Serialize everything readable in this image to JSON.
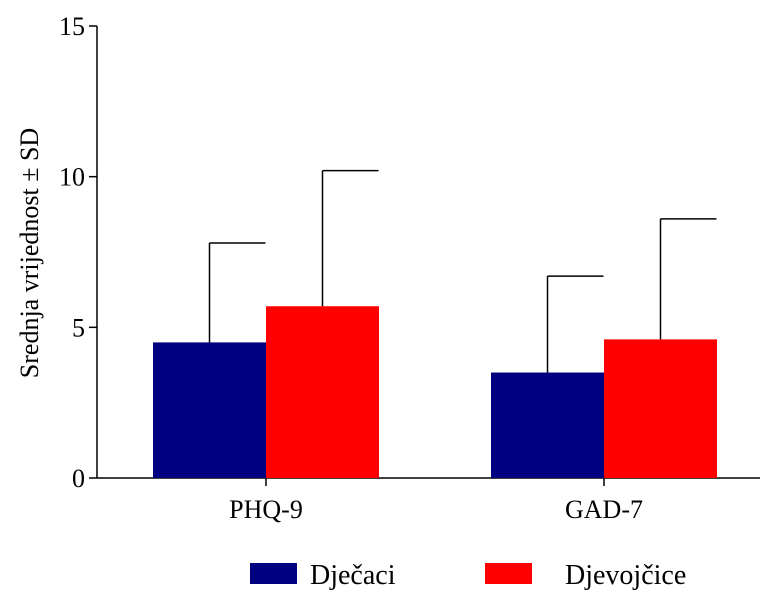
{
  "chart_data": {
    "type": "bar",
    "categories": [
      "PHQ-9",
      "GAD-7"
    ],
    "series": [
      {
        "name": "Dječaci",
        "values": [
          4.5,
          3.5
        ],
        "sd": [
          3.3,
          3.2
        ],
        "color": "#000080"
      },
      {
        "name": "Djevojčice",
        "values": [
          5.7,
          4.6
        ],
        "sd": [
          4.5,
          4.0
        ],
        "color": "#ff0000"
      }
    ],
    "title": "",
    "xlabel": "",
    "ylabel": "Srednja vrijednost ± SD",
    "ylim": [
      0,
      15
    ],
    "yticks": [
      0,
      5,
      10,
      15
    ],
    "error_bars": "upper",
    "grid": false,
    "legend_position": "bottom"
  }
}
